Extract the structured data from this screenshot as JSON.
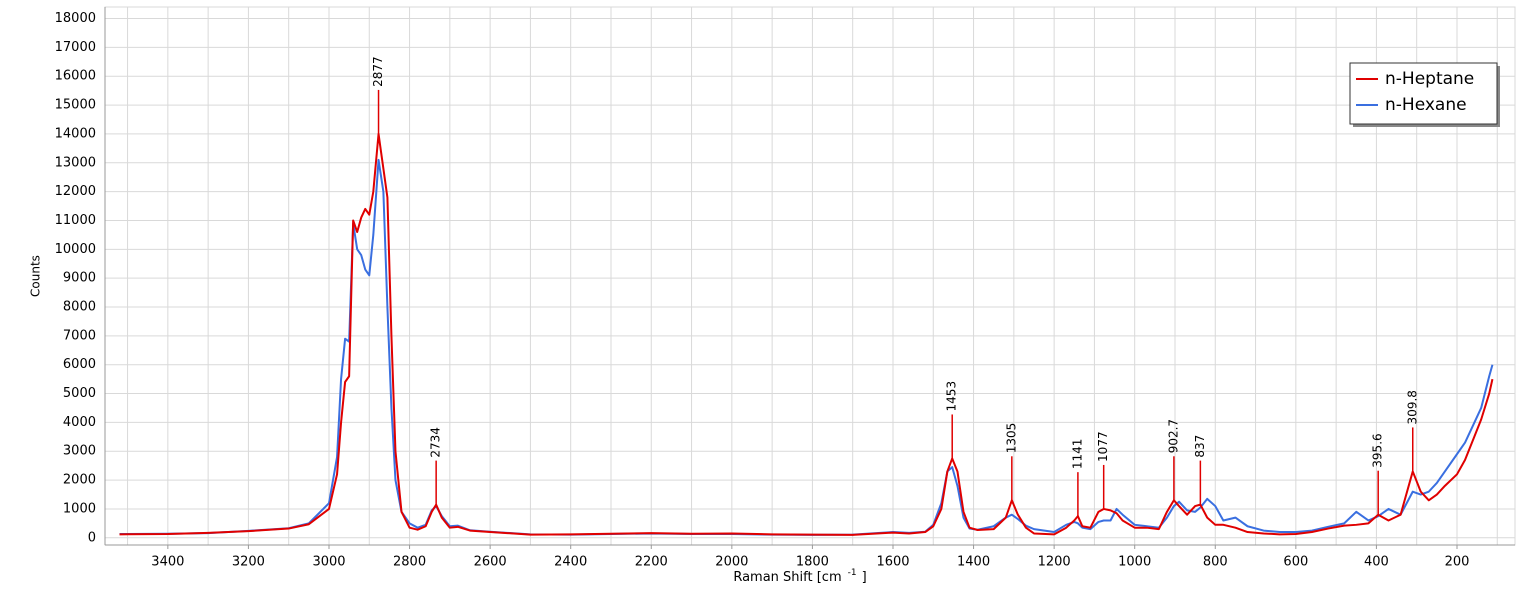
{
  "chart_data": {
    "type": "line",
    "ylabel": "Counts",
    "xlabel": {
      "text": "Raman Shift [cm",
      "sup": "-1",
      "end": "]"
    },
    "xlim": [
      3556,
      56
    ],
    "ylim": [
      -250,
      18400
    ],
    "xticks": [
      3400,
      3200,
      3000,
      2800,
      2600,
      2400,
      2200,
      2000,
      1800,
      1600,
      1400,
      1200,
      1000,
      800,
      600,
      400,
      200
    ],
    "x_minor_grid": [
      3500,
      3300,
      3100,
      2900,
      2700,
      2500,
      2300,
      2100,
      1900,
      1700,
      1500,
      1300,
      1100,
      900,
      700,
      500,
      300,
      100
    ],
    "yticks": [
      0,
      1000,
      2000,
      3000,
      4000,
      5000,
      6000,
      7000,
      8000,
      9000,
      10000,
      11000,
      12000,
      13000,
      14000,
      15000,
      16000,
      17000,
      18000
    ],
    "grid": true,
    "legend": "top-right",
    "x": [
      3520,
      3400,
      3300,
      3200,
      3100,
      3050,
      3000,
      2980,
      2970,
      2960,
      2950,
      2940,
      2930,
      2920,
      2910,
      2900,
      2890,
      2877,
      2865,
      2855,
      2845,
      2835,
      2820,
      2800,
      2780,
      2760,
      2745,
      2734,
      2720,
      2700,
      2680,
      2650,
      2600,
      2500,
      2400,
      2300,
      2200,
      2100,
      2000,
      1900,
      1800,
      1700,
      1600,
      1560,
      1520,
      1500,
      1480,
      1465,
      1453,
      1440,
      1425,
      1410,
      1390,
      1350,
      1320,
      1305,
      1290,
      1270,
      1250,
      1200,
      1170,
      1150,
      1141,
      1130,
      1110,
      1090,
      1077,
      1060,
      1045,
      1030,
      1000,
      970,
      940,
      920,
      902.7,
      890,
      870,
      850,
      837,
      820,
      800,
      780,
      750,
      720,
      680,
      640,
      600,
      560,
      520,
      480,
      450,
      420,
      395.6,
      370,
      340,
      309.8,
      290,
      270,
      250,
      230,
      200,
      180,
      160,
      140,
      120,
      112
    ],
    "series": [
      {
        "name": "n-Heptane",
        "color": "#e00000",
        "values": [
          120,
          130,
          170,
          230,
          320,
          470,
          1000,
          2200,
          4000,
          5400,
          5600,
          11000,
          10600,
          11100,
          11400,
          11200,
          12000,
          14000,
          12800,
          11800,
          7000,
          3000,
          900,
          350,
          280,
          400,
          900,
          1150,
          700,
          350,
          380,
          250,
          200,
          110,
          120,
          140,
          160,
          140,
          150,
          120,
          110,
          100,
          180,
          150,
          200,
          400,
          1000,
          2300,
          2750,
          2300,
          900,
          350,
          270,
          300,
          700,
          1300,
          800,
          350,
          150,
          120,
          350,
          600,
          750,
          400,
          350,
          900,
          1000,
          950,
          850,
          600,
          350,
          350,
          300,
          900,
          1300,
          1100,
          800,
          1100,
          1150,
          700,
          450,
          450,
          350,
          200,
          150,
          120,
          130,
          200,
          320,
          420,
          450,
          500,
          800,
          600,
          800,
          2300,
          1600,
          1300,
          1500,
          1800,
          2200,
          2700,
          3400,
          4100,
          5000,
          5500
        ]
      },
      {
        "name": "n-Hexane",
        "color": "#3a6fe0",
        "values": [
          130,
          140,
          160,
          240,
          330,
          500,
          1200,
          2800,
          5500,
          6900,
          6800,
          10900,
          10000,
          9800,
          9300,
          9100,
          10500,
          13100,
          12000,
          8000,
          4500,
          2000,
          900,
          500,
          350,
          450,
          950,
          1100,
          750,
          400,
          420,
          260,
          210,
          120,
          110,
          130,
          150,
          130,
          130,
          110,
          100,
          110,
          200,
          170,
          210,
          450,
          1200,
          2300,
          2450,
          1800,
          700,
          320,
          280,
          400,
          700,
          800,
          650,
          420,
          300,
          200,
          450,
          550,
          500,
          350,
          300,
          550,
          600,
          600,
          1000,
          800,
          450,
          400,
          350,
          700,
          1100,
          1250,
          950,
          900,
          1050,
          1350,
          1100,
          600,
          700,
          400,
          250,
          200,
          200,
          250,
          380,
          500,
          900,
          600,
          750,
          1000,
          800,
          1600,
          1500,
          1600,
          1900,
          2300,
          2900,
          3300,
          3900,
          4500,
          5600,
          6000
        ]
      }
    ],
    "peaks": {
      "x": [
        2877,
        2734,
        1453,
        1305,
        1141,
        1077,
        902.7,
        837,
        395.6,
        309.8
      ],
      "y": [
        14000,
        1150,
        2750,
        1300,
        750,
        1000,
        1300,
        1150,
        800,
        2300
      ]
    }
  }
}
